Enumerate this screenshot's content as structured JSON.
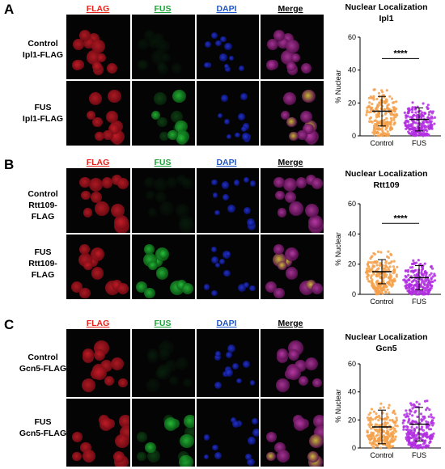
{
  "channel_labels": {
    "flag": "FLAG",
    "fus": "FUS",
    "dapi": "DAPI",
    "merge": "Merge",
    "flag_color": "#e8221c",
    "fus_color": "#1fa53a",
    "dapi_color": "#1f57c8",
    "merge_color": "#000000"
  },
  "panels": [
    {
      "letter": "A",
      "rows": [
        {
          "line1": "Control",
          "line2": "Ipl1-FLAG"
        },
        {
          "line1": "FUS",
          "line2": "Ipl1-FLAG"
        }
      ],
      "plot": {
        "title1": "Nuclear Localization",
        "title2": "Ipl1",
        "significance": "****"
      }
    },
    {
      "letter": "B",
      "rows": [
        {
          "line1": "Control",
          "line2": "Rtt109-FLAG"
        },
        {
          "line1": "FUS",
          "line2": "Rtt109-FLAG"
        }
      ],
      "plot": {
        "title1": "Nuclear Localization",
        "title2": "Rtt109",
        "significance": "****"
      }
    },
    {
      "letter": "C",
      "rows": [
        {
          "line1": "Control",
          "line2": "Gcn5-FLAG"
        },
        {
          "line1": "FUS",
          "line2": "Gcn5-FLAG"
        }
      ],
      "plot": {
        "title1": "Nuclear Localization",
        "title2": "Gcn5",
        "significance": ""
      }
    }
  ],
  "chart_data": [
    {
      "type": "scatter",
      "title": "Nuclear Localization Ipl1",
      "ylabel": "% Nuclear",
      "categories": [
        "Control",
        "FUS"
      ],
      "ylim": [
        0,
        60
      ],
      "yticks": [
        0,
        20,
        40,
        60
      ],
      "series": [
        {
          "name": "Control",
          "color": "#f5a04a",
          "mean": 15,
          "sd": 9,
          "min": 0,
          "max": 47
        },
        {
          "name": "FUS",
          "color": "#b22fe0",
          "mean": 10,
          "sd": 7,
          "min": 0,
          "max": 30
        }
      ],
      "significance": "****"
    },
    {
      "type": "scatter",
      "title": "Nuclear Localization Rtt109",
      "ylabel": "% Nuclear",
      "categories": [
        "Control",
        "FUS"
      ],
      "ylim": [
        0,
        60
      ],
      "yticks": [
        0,
        20,
        40,
        60
      ],
      "series": [
        {
          "name": "Control",
          "color": "#f5a04a",
          "mean": 15,
          "sd": 8,
          "min": 0,
          "max": 45
        },
        {
          "name": "FUS",
          "color": "#b22fe0",
          "mean": 11,
          "sd": 8,
          "min": 0,
          "max": 32
        }
      ],
      "significance": "****"
    },
    {
      "type": "scatter",
      "title": "Nuclear Localization Gcn5",
      "ylabel": "% Nuclear",
      "categories": [
        "Control",
        "FUS"
      ],
      "ylim": [
        0,
        60
      ],
      "yticks": [
        0,
        20,
        40,
        60
      ],
      "series": [
        {
          "name": "Control",
          "color": "#f5a04a",
          "mean": 15,
          "sd": 12,
          "min": 0,
          "max": 54
        },
        {
          "name": "FUS",
          "color": "#b22fe0",
          "mean": 17,
          "sd": 12,
          "min": 0,
          "max": 52
        }
      ],
      "significance": ""
    }
  ]
}
